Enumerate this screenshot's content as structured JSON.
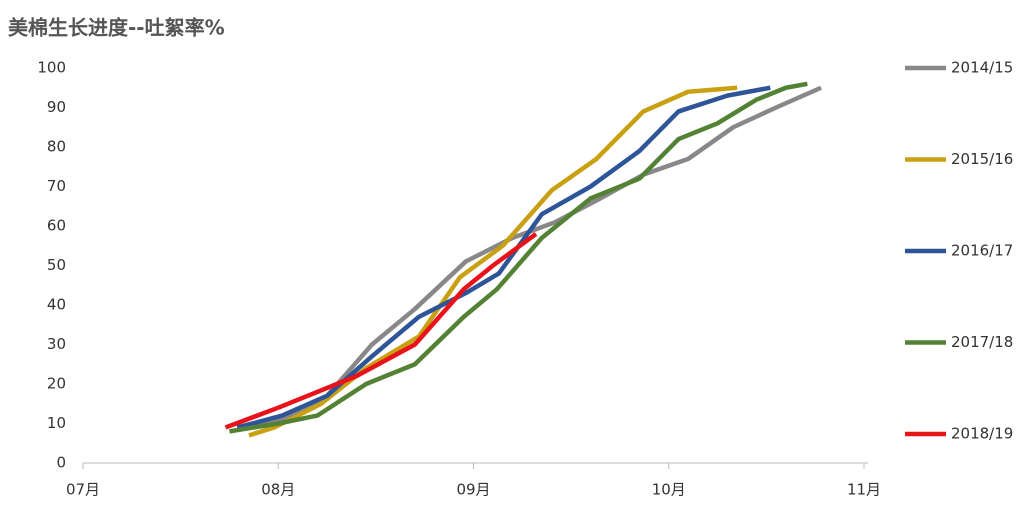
{
  "chart_data": {
    "type": "line",
    "title": "美棉生长进度--吐絮率%",
    "xlim": [
      0,
      4
    ],
    "xticks": [
      {
        "value": 0,
        "label": "07月"
      },
      {
        "value": 1,
        "label": "08月"
      },
      {
        "value": 2,
        "label": "09月"
      },
      {
        "value": 3,
        "label": "10月"
      },
      {
        "value": 4,
        "label": "11月"
      }
    ],
    "ylim": [
      0,
      100
    ],
    "yticks": [
      0,
      10,
      20,
      30,
      40,
      50,
      60,
      70,
      80,
      90,
      100
    ],
    "grid": false,
    "legend": "right",
    "series": [
      {
        "name": "2014/15",
        "color": "#888888",
        "x": [
          0.79,
          1.02,
          1.25,
          1.48,
          1.7,
          1.96,
          2.2,
          2.42,
          2.65,
          2.87,
          3.1,
          3.33,
          3.55,
          3.78
        ],
        "values": [
          9,
          11,
          17,
          30,
          39,
          51,
          57,
          61,
          67,
          73,
          77,
          85,
          90,
          95
        ]
      },
      {
        "name": "2015/16",
        "color": "#c9a012",
        "x": [
          0.85,
          0.98,
          1.22,
          1.45,
          1.72,
          1.93,
          2.15,
          2.4,
          2.63,
          2.87,
          3.1,
          3.35
        ],
        "values": [
          7,
          9,
          15,
          24,
          32,
          47,
          55,
          69,
          77,
          89,
          94,
          95
        ]
      },
      {
        "name": "2016/17",
        "color": "#2e5597",
        "x": [
          0.79,
          1.02,
          1.25,
          1.48,
          1.72,
          1.96,
          2.13,
          2.35,
          2.6,
          2.85,
          3.05,
          3.3,
          3.52
        ],
        "values": [
          9,
          12,
          17,
          27,
          37,
          43,
          48,
          63,
          70,
          79,
          89,
          93,
          95
        ]
      },
      {
        "name": "2017/18",
        "color": "#548235",
        "x": [
          0.75,
          1.0,
          1.2,
          1.45,
          1.7,
          1.95,
          2.12,
          2.35,
          2.6,
          2.85,
          3.05,
          3.25,
          3.45,
          3.6,
          3.71
        ],
        "values": [
          8,
          10,
          12,
          20,
          25,
          37,
          44,
          57,
          67,
          72,
          82,
          86,
          92,
          95,
          96
        ]
      },
      {
        "name": "2018/19",
        "color": "#e8121a",
        "x": [
          0.73,
          1.0,
          1.2,
          1.4,
          1.7,
          1.95,
          2.1,
          2.32
        ],
        "values": [
          9,
          14,
          18,
          22,
          30,
          44,
          50,
          58
        ]
      }
    ]
  }
}
